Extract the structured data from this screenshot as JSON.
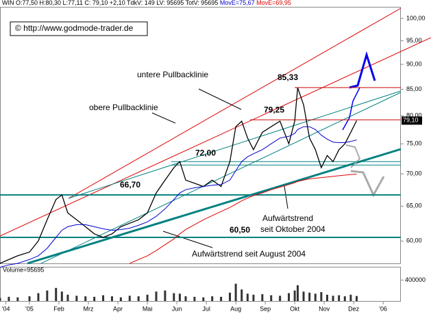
{
  "chart_data": {
    "type": "line",
    "header": "WIN O:77,50 H:80,30 L:77,11 C: 79,10 +2,10 TdkV: 149 LV: 95695 TotV: 95695",
    "copyright": "© http://www.godmode-trader.de",
    "log_scale": true,
    "xlim": [
      -1,
      12.6
    ],
    "ylim": [
      57,
      102.7
    ],
    "xticks": [
      {
        "value": -0.8,
        "label": "'04"
      },
      {
        "value": 0,
        "label": "'05"
      },
      {
        "value": 1,
        "label": "Feb"
      },
      {
        "value": 2,
        "label": "Mrz"
      },
      {
        "value": 3,
        "label": "Apr"
      },
      {
        "value": 4,
        "label": "Mai"
      },
      {
        "value": 5,
        "label": "Jun"
      },
      {
        "value": 6,
        "label": "Jul"
      },
      {
        "value": 7,
        "label": "Aug"
      },
      {
        "value": 8,
        "label": "Sep"
      },
      {
        "value": 9,
        "label": "Okt"
      },
      {
        "value": 10,
        "label": "Nov"
      },
      {
        "value": 11,
        "label": "Dez"
      },
      {
        "value": 12,
        "label": "'06"
      }
    ],
    "yticks": [
      {
        "value": 60,
        "label": "60,00"
      },
      {
        "value": 65,
        "label": "65,00"
      },
      {
        "value": 70,
        "label": "70,00"
      },
      {
        "value": 75,
        "label": "75,00"
      },
      {
        "value": 80,
        "label": "80,00"
      },
      {
        "value": 85,
        "label": "85,00"
      },
      {
        "value": 90,
        "label": "90,00"
      },
      {
        "value": 95,
        "label": "95,00"
      },
      {
        "value": 100,
        "label": "100,00"
      }
    ],
    "x": [
      -1,
      -0.7,
      -0.4,
      0,
      0.3,
      0.6,
      0.9,
      1.1,
      1.3,
      1.6,
      1.9,
      2.2,
      2.5,
      2.8,
      3.1,
      3.4,
      3.7,
      4.0,
      4.3,
      4.6,
      4.9,
      5.1,
      5.3,
      5.6,
      5.9,
      6.2,
      6.5,
      6.8,
      7.0,
      7.2,
      7.4,
      7.6,
      7.9,
      8.2,
      8.5,
      8.8,
      9.0,
      9.1,
      9.3,
      9.5,
      9.7,
      9.9,
      10.1,
      10.3,
      10.5,
      10.7,
      10.9,
      11.1
    ],
    "series": [
      {
        "color": "#000000",
        "values": [
          57,
          57.5,
          58,
          58.5,
          60,
          63,
          66,
          66.7,
          64,
          63,
          62,
          61,
          60.5,
          61,
          62,
          62.5,
          63,
          64,
          67,
          69,
          71,
          72,
          69,
          68.5,
          68,
          69,
          68,
          72,
          78,
          79,
          76,
          74,
          77,
          78,
          79,
          75,
          79,
          85.3,
          82,
          76,
          74,
          71,
          73,
          72,
          74,
          75,
          77,
          79.1
        ]
      },
      {
        "name": "MovE=75,67",
        "color": "#0000cc",
        "values": [
          56.5,
          56.8,
          57,
          57.5,
          58,
          59,
          60.5,
          61.5,
          62,
          62.3,
          62.3,
          62,
          61.7,
          61.5,
          61.6,
          61.8,
          62.2,
          62.7,
          63.5,
          64.6,
          66,
          67,
          67.5,
          67.8,
          68,
          68.2,
          68.3,
          69,
          70.5,
          72,
          72.8,
          73.3,
          74,
          75,
          76,
          76.3,
          76.8,
          77.5,
          78,
          78,
          77.5,
          76.5,
          75.8,
          75.3,
          75.2,
          75.2,
          75.4,
          75.67
        ]
      },
      {
        "name": "MovE=69,95",
        "color": "#dd0000",
        "values": [
          null,
          null,
          null,
          null,
          null,
          null,
          null,
          null,
          null,
          null,
          null,
          null,
          null,
          null,
          null,
          57,
          57.5,
          58,
          58.7,
          59.5,
          60.3,
          61,
          61.6,
          62.3,
          63,
          63.6,
          64.2,
          64.8,
          65.3,
          65.8,
          66.2,
          66.6,
          67,
          67.5,
          67.9,
          68.3,
          68.6,
          68.8,
          69,
          69.2,
          69.3,
          69.4,
          69.5,
          69.6,
          69.7,
          69.8,
          69.9,
          69.95
        ]
      }
    ],
    "last_price": {
      "value": 79.1,
      "label": "79,10"
    },
    "levels": [
      {
        "value": 85.33,
        "label": "85,33",
        "color": "#cc0000"
      },
      {
        "value": 79.25,
        "label": "79,25",
        "color": "#cc0000"
      },
      {
        "value": 72.0,
        "label": "72,00",
        "color": "#008080"
      },
      {
        "value": 66.7,
        "label": "66,70",
        "color": "#008080"
      },
      {
        "value": 60.5,
        "label": "60,50",
        "color": "#008080"
      }
    ],
    "notes": [
      "untere Pullbacklinie",
      "obere Pullbacklinie",
      "Aufwärtstrend",
      "seit Oktober 2004",
      "Aufwärtstrend seit August 2004"
    ],
    "volume": {
      "label": "Volume=95695",
      "ylim": [
        0,
        640000
      ],
      "yticks": [
        400000
      ],
      "values": [
        60000,
        80000,
        70000,
        90000,
        150000,
        200000,
        250000,
        180000,
        120000,
        100000,
        90000,
        80000,
        110000,
        90000,
        70000,
        100000,
        90000,
        120000,
        180000,
        200000,
        150000,
        140000,
        90000,
        80000,
        70000,
        90000,
        80000,
        160000,
        330000,
        220000,
        140000,
        120000,
        130000,
        110000,
        100000,
        150000,
        200000,
        300000,
        180000,
        160000,
        140000,
        170000,
        120000,
        100000,
        110000,
        90000,
        120000,
        95695
      ]
    }
  }
}
